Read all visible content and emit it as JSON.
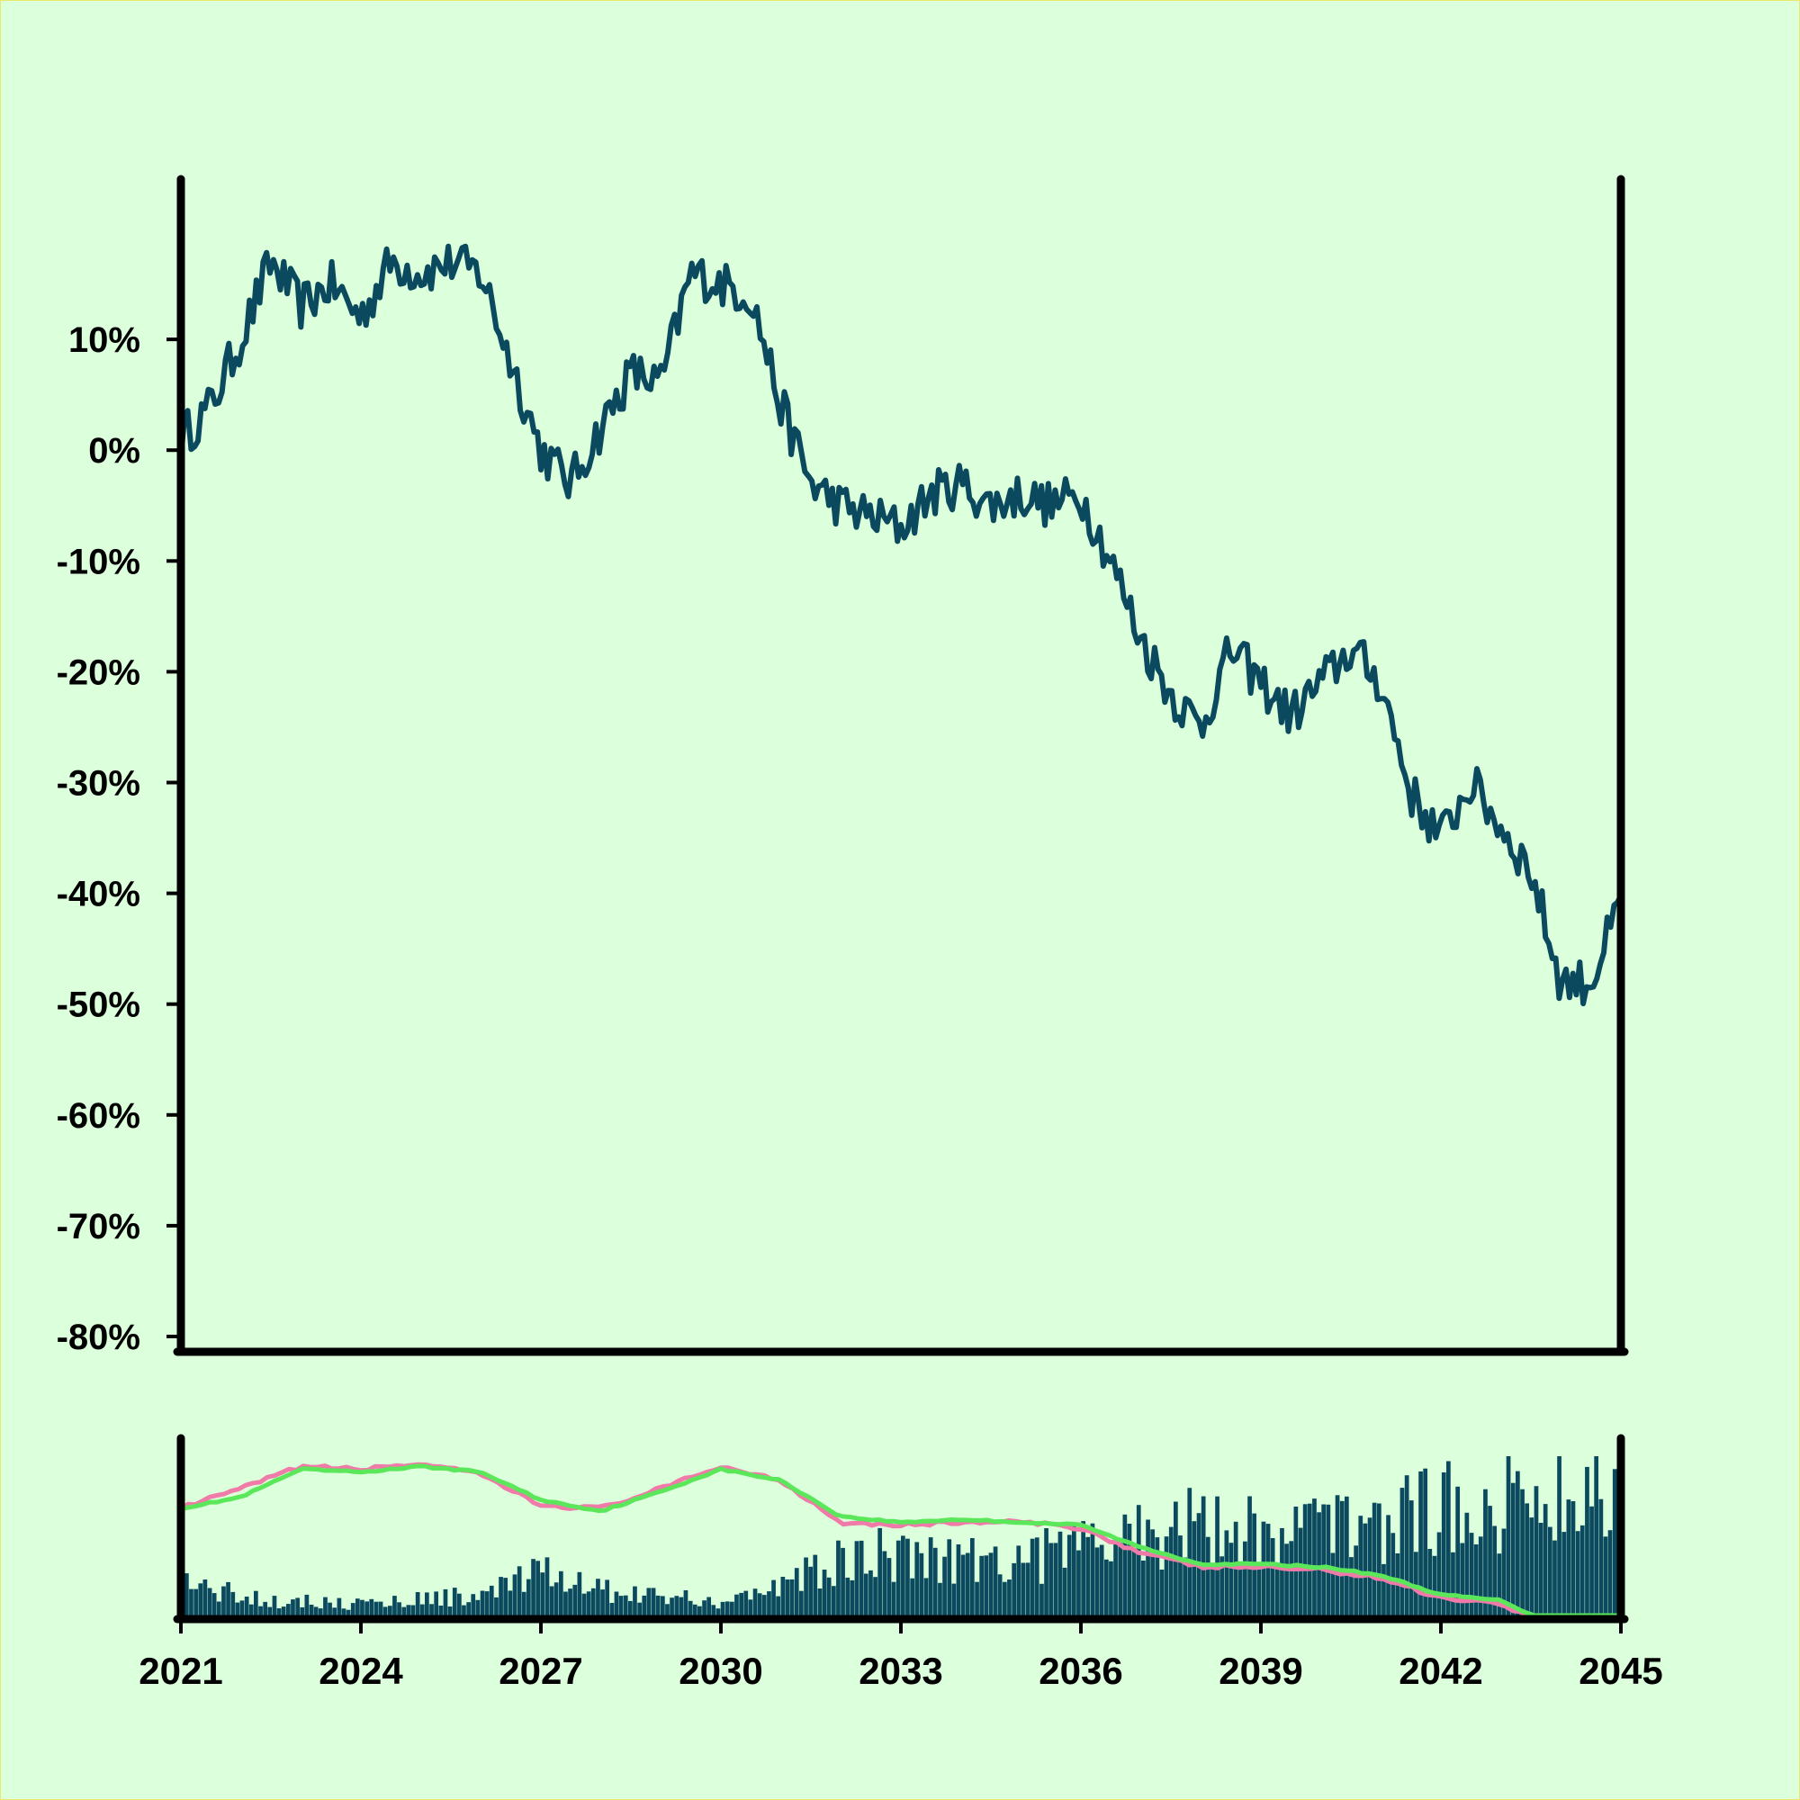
{
  "colors": {
    "background": "#dcffdc",
    "price_line": "#0b4a5e",
    "volume_bars": "#0b4a5e",
    "ma_fast": "#f07aa8",
    "ma_slow": "#5ae85a",
    "axis": "#000000"
  },
  "chart_data": [
    {
      "type": "line",
      "title": "",
      "xlabel": "",
      "ylabel": "",
      "ylim": [
        -80,
        20
      ],
      "xlim": [
        2021,
        2045
      ],
      "y_ticks": [
        10,
        0,
        -10,
        -20,
        -30,
        -40,
        -50,
        -60,
        -70,
        -80
      ],
      "y_tick_labels": [
        "10%",
        "0%",
        "-10%",
        "-20%",
        "-30%",
        "-40%",
        "-50%",
        "-60%",
        "-70%",
        "-80%"
      ],
      "series": [
        {
          "x": [
            2021.0,
            2021.5,
            2022.0,
            2022.5,
            2023.0,
            2023.5,
            2024.0,
            2024.5,
            2025.0,
            2025.5,
            2026.0,
            2026.5,
            2027.0,
            2027.5,
            2028.0,
            2028.5,
            2029.0,
            2029.5,
            2030.0,
            2030.5,
            2031.0,
            2031.5,
            2032.0,
            2032.5,
            2033.0,
            2033.5,
            2034.0,
            2034.5,
            2035.0,
            2035.5,
            2036.0,
            2036.5,
            2037.0,
            2037.5,
            2038.0,
            2038.5,
            2039.0,
            2039.5,
            2040.0,
            2040.5,
            2041.0,
            2041.5,
            2042.0,
            2042.5,
            2043.0,
            2043.5,
            2044.0,
            2044.5,
            2045.0
          ],
          "values": [
            1,
            4,
            10,
            17,
            13,
            15,
            12,
            17,
            16,
            17,
            16,
            8,
            0,
            -3,
            2,
            7,
            6,
            16,
            15,
            14,
            4,
            -3,
            -5,
            -6,
            -7,
            -4,
            -3,
            -5,
            -4,
            -5,
            -4,
            -10,
            -17,
            -22,
            -25,
            -18,
            -21,
            -24,
            -21,
            -18,
            -21,
            -31,
            -35,
            -30,
            -34,
            -38,
            -48,
            -48,
            -41
          ]
        }
      ]
    },
    {
      "type": "bar",
      "title": "",
      "xlim": [
        2021,
        2045
      ],
      "x_ticks": [
        2021,
        2024,
        2027,
        2030,
        2033,
        2036,
        2039,
        2042,
        2045
      ],
      "x_tick_labels": [
        "2021",
        "2024",
        "2027",
        "2030",
        "2033",
        "2036",
        "2039",
        "2042",
        "2045"
      ],
      "series": [
        {
          "x": [
            2021,
            2022,
            2023,
            2024,
            2025,
            2026,
            2027,
            2028,
            2029,
            2030,
            2031,
            2032,
            2033,
            2034,
            2035,
            2036,
            2037,
            2038,
            2039,
            2040,
            2041,
            2042,
            2043,
            2044,
            2045
          ],
          "values": [
            0.25,
            0.15,
            0.12,
            0.1,
            0.14,
            0.16,
            0.3,
            0.2,
            0.15,
            0.12,
            0.22,
            0.38,
            0.45,
            0.42,
            0.4,
            0.48,
            0.58,
            0.62,
            0.6,
            0.62,
            0.66,
            0.72,
            0.78,
            0.84,
            0.88
          ]
        },
        {
          "x": [
            2021,
            2022,
            2023,
            2024,
            2025,
            2026,
            2027,
            2028,
            2029,
            2030,
            2031,
            2032,
            2033,
            2034,
            2035,
            2036,
            2037,
            2038,
            2039,
            2040,
            2041,
            2042,
            2043,
            2044,
            2045
          ],
          "values": [
            1,
            8,
            16,
            15,
            17,
            13,
            2,
            1,
            8,
            16,
            11,
            -4,
            -5,
            -4,
            -4,
            -6,
            -15,
            -20,
            -20,
            -21,
            -24,
            -31,
            -33,
            -44,
            -45
          ]
        },
        {
          "x": [
            2021,
            2022,
            2023,
            2024,
            2025,
            2026,
            2027,
            2028,
            2029,
            2030,
            2031,
            2032,
            2033,
            2034,
            2035,
            2036,
            2037,
            2038,
            2039,
            2040,
            2041,
            2042,
            2043,
            2044,
            2045
          ],
          "values": [
            1,
            5,
            15,
            14,
            16,
            14,
            4,
            0,
            7,
            15,
            11,
            -2,
            -4,
            -3,
            -4,
            -5,
            -13,
            -19,
            -19,
            -20,
            -23,
            -30,
            -32,
            -42,
            -45
          ]
        }
      ]
    }
  ]
}
